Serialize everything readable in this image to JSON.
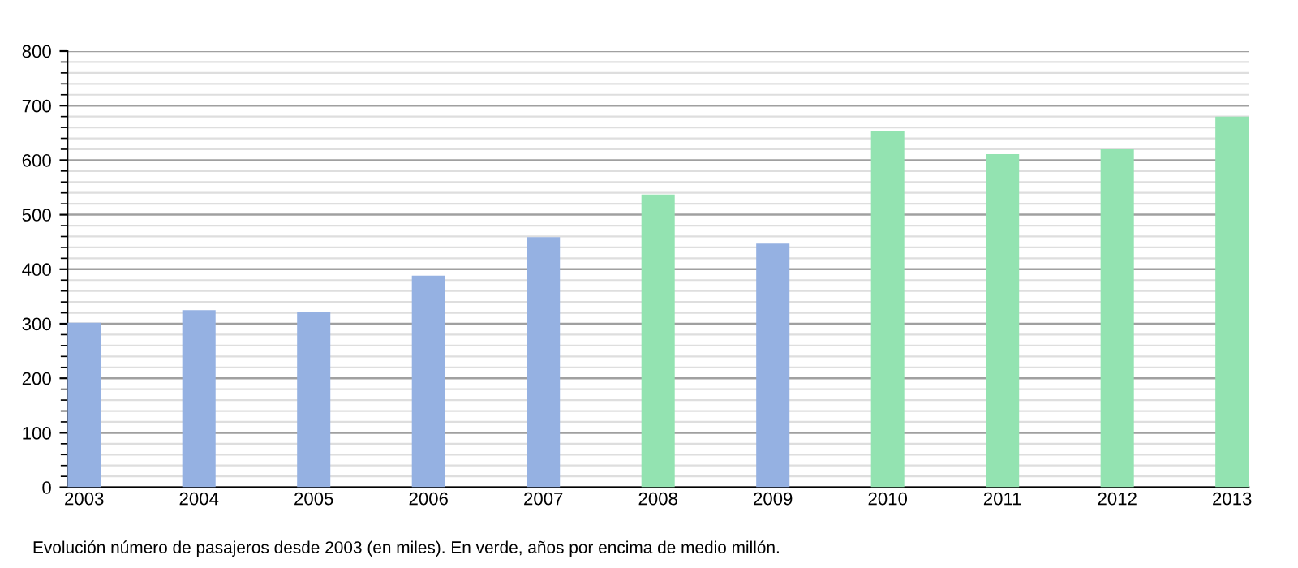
{
  "chart_data": {
    "type": "bar",
    "categories": [
      "2003",
      "2004",
      "2005",
      "2006",
      "2007",
      "2008",
      "2009",
      "2010",
      "2011",
      "2012",
      "2013"
    ],
    "values": [
      302,
      325,
      322,
      388,
      459,
      537,
      447,
      653,
      611,
      620,
      680
    ],
    "colors": [
      "#95b1e2",
      "#95b1e2",
      "#95b1e2",
      "#95b1e2",
      "#95b1e2",
      "#93e3b1",
      "#95b1e2",
      "#93e3b1",
      "#93e3b1",
      "#93e3b1",
      "#93e3b1"
    ],
    "ylim": [
      0,
      800
    ],
    "yticks": [
      0,
      100,
      200,
      300,
      400,
      500,
      600,
      700,
      800
    ],
    "grid": "y",
    "legend": false,
    "annotations": [
      "Evolución número de pasajeros desde 2003 (en miles). En verde, años por encima de medio millón."
    ]
  }
}
